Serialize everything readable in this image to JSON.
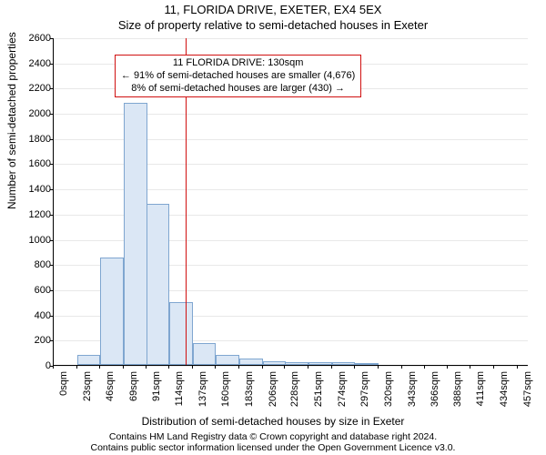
{
  "chart": {
    "type": "histogram",
    "title_line1": "11, FLORIDA DRIVE, EXETER, EX4 5EX",
    "title_line2": "Size of property relative to semi-detached houses in Exeter",
    "ylabel": "Number of semi-detached properties",
    "xlabel": "Distribution of semi-detached houses by size in Exeter",
    "title_fontsize": 13,
    "label_fontsize": 12,
    "tick_fontsize": 11,
    "background_color": "#ffffff",
    "grid_color": "#e8e8e8",
    "bar_fill": "#dbe7f5",
    "bar_stroke": "#7fa6d0",
    "marker_color": "#d01010",
    "ylim": [
      0,
      2600
    ],
    "ytick_step": 200,
    "yticks": [
      0,
      200,
      400,
      600,
      800,
      1000,
      1200,
      1400,
      1600,
      1800,
      2000,
      2200,
      2400,
      2600
    ],
    "xticks": [
      "0sqm",
      "23sqm",
      "46sqm",
      "69sqm",
      "91sqm",
      "114sqm",
      "137sqm",
      "160sqm",
      "183sqm",
      "206sqm",
      "228sqm",
      "251sqm",
      "274sqm",
      "297sqm",
      "320sqm",
      "343sqm",
      "366sqm",
      "388sqm",
      "411sqm",
      "434sqm",
      "457sqm"
    ],
    "xlim_sqm": [
      0,
      468
    ],
    "bin_width_sqm": 23,
    "bars": [
      {
        "start_sqm": 23,
        "value": 80
      },
      {
        "start_sqm": 46,
        "value": 850
      },
      {
        "start_sqm": 69,
        "value": 2080
      },
      {
        "start_sqm": 91,
        "value": 1280
      },
      {
        "start_sqm": 114,
        "value": 500
      },
      {
        "start_sqm": 137,
        "value": 170
      },
      {
        "start_sqm": 160,
        "value": 80
      },
      {
        "start_sqm": 183,
        "value": 50
      },
      {
        "start_sqm": 206,
        "value": 30
      },
      {
        "start_sqm": 228,
        "value": 25
      },
      {
        "start_sqm": 251,
        "value": 22
      },
      {
        "start_sqm": 274,
        "value": 20
      },
      {
        "start_sqm": 297,
        "value": 15
      }
    ],
    "marker_sqm": 130,
    "annotation": {
      "line1": "11 FLORIDA DRIVE: 130sqm",
      "line2": "← 91% of semi-detached houses are smaller (4,676)",
      "line3": "8% of semi-detached houses are larger (430) →",
      "top_y_value": 2470,
      "fontsize": 11
    }
  },
  "attribution": {
    "line1": "Contains HM Land Registry data © Crown copyright and database right 2024.",
    "line2": "Contains public sector information licensed under the Open Government Licence v3.0."
  }
}
